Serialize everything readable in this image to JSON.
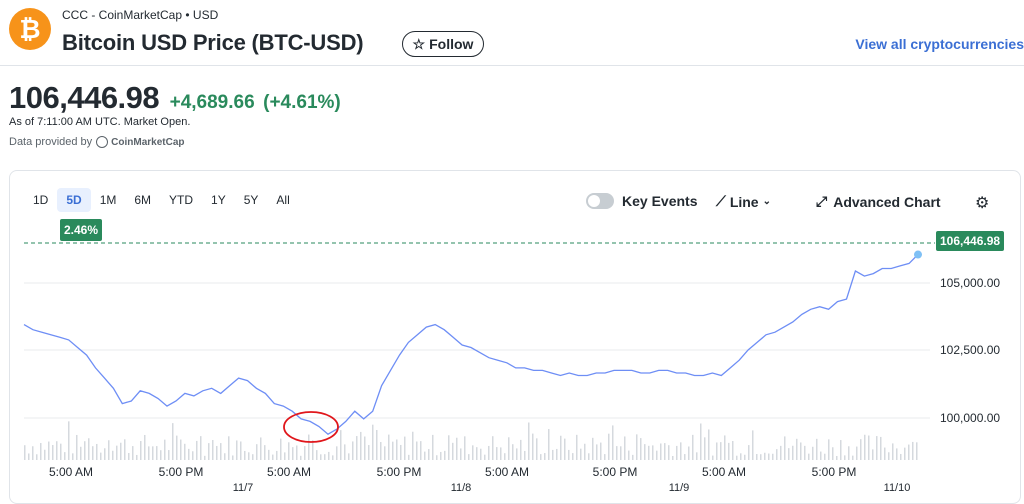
{
  "header": {
    "source_line": "CCC - CoinMarketCap • USD",
    "title": "Bitcoin USD Price (BTC-USD)",
    "follow_label": "Follow",
    "view_all_label": "View all cryptocurrencies",
    "logo_glyph": "₿"
  },
  "quote": {
    "price": "106,446.98",
    "change": "+4,689.66",
    "change_pct": "(+4.61%)",
    "as_of": "As of 7:11:00 AM UTC. Market Open.",
    "provided_by": "Data provided by",
    "provider": "CoinMarketCap"
  },
  "colors": {
    "accent": "#3b6fd4",
    "positive": "#2a8a5c",
    "line": "#6e8ef5",
    "annotation": "#e0161b"
  },
  "chart": {
    "ranges": [
      "1D",
      "5D",
      "1M",
      "6M",
      "YTD",
      "1Y",
      "5Y",
      "All"
    ],
    "active_range": "5D",
    "period_change_badge": "2.46%",
    "key_events_label": "Key Events",
    "line_label": "Line",
    "advanced_label": "Advanced Chart",
    "current_price_tag": "106,446.98",
    "y_ticks": [
      "105,000.00",
      "102,500.00",
      "100,000.00"
    ],
    "x_ticks": [
      "5:00 AM",
      "5:00 PM",
      "5:00 AM",
      "5:00 PM",
      "5:00 AM",
      "5:00 PM",
      "5:00 AM",
      "5:00 PM"
    ],
    "x_dates": [
      "11/7",
      "11/8",
      "11/9",
      "11/10"
    ]
  },
  "chart_data": {
    "type": "line",
    "title": "",
    "xlabel": "",
    "ylabel": "",
    "ylim": [
      98700,
      106900
    ],
    "reference_price": 106446.98,
    "series": [
      {
        "values": [
          103700,
          103500,
          103400,
          103300,
          103200,
          103100,
          102800,
          102500,
          102000,
          101600,
          101200,
          100600,
          100700,
          101100,
          101000,
          100800,
          100500,
          100700,
          101000,
          100900,
          101100,
          101200,
          101000,
          101300,
          101600,
          101500,
          101200,
          101000,
          100600,
          100500,
          100300,
          100000,
          99900,
          99700,
          99400,
          99600,
          99900,
          100300,
          100000,
          100300,
          101300,
          101900,
          102500,
          103000,
          103300,
          103600,
          103700,
          103500,
          103200,
          102900,
          102800,
          102600,
          102400,
          102300,
          102200,
          102000,
          102000,
          101900,
          101900,
          101800,
          101700,
          101800,
          101700,
          101700,
          101800,
          101800,
          101900,
          101900,
          101900,
          101800,
          101800,
          101900,
          101900,
          101800,
          101800,
          101700,
          101700,
          101800,
          101700,
          102000,
          102300,
          102700,
          103000,
          103300,
          103400,
          103600,
          103800,
          104100,
          104300,
          104400,
          104300,
          104600,
          104700,
          105800,
          105600,
          105700,
          105900,
          105900,
          106000,
          106100,
          106446.98
        ]
      }
    ],
    "volume_bars": true,
    "annotation": "hand-drawn red circle around the low near 5:00 AM on 11/7"
  }
}
